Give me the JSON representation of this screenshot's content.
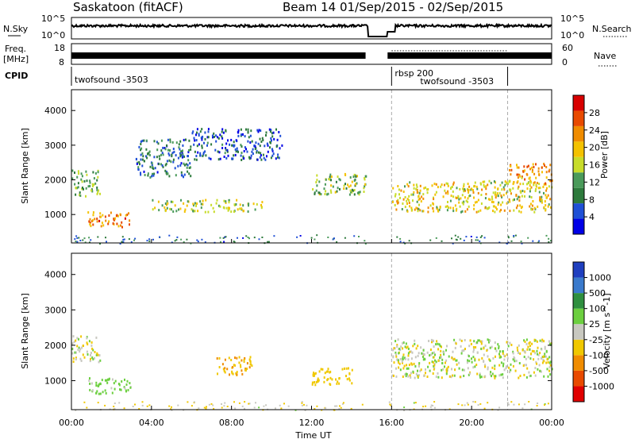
{
  "chart_data": {
    "type": "heatmap",
    "header": {
      "station": "Saskatoon (fitACF)",
      "beam_info": "Beam 14  01/Sep/2015 - 02/Sep/2015"
    },
    "top_panels": {
      "nsky": {
        "label": "N.Sky",
        "left_ticks": [
          "10^5",
          "10^0"
        ],
        "right_ticks": [
          "10^5",
          "10^0"
        ],
        "right_label": "N.Search"
      },
      "freq": {
        "label_line1": "Freq.",
        "label_line2": "[MHz]",
        "left_ticks": [
          "18",
          "8"
        ],
        "right_ticks": [
          "60",
          "0"
        ],
        "right_label": "Nave"
      },
      "cpid": {
        "label": "CPID",
        "programs": [
          {
            "name": "twofsound -3503",
            "start_hour": 0,
            "end_hour": 16
          },
          {
            "name": "rbsp 200",
            "start_hour": 16,
            "end_hour": 16
          },
          {
            "name": "twofsound -3503",
            "start_hour": 16,
            "end_hour": 22
          }
        ]
      }
    },
    "x_axis": {
      "label": "Time UT",
      "range_hours": [
        0,
        24
      ],
      "ticks": [
        "00:00",
        "04:00",
        "08:00",
        "12:00",
        "16:00",
        "20:00",
        "00:00"
      ]
    },
    "y_axis": {
      "label": "Slant Range [km]",
      "range_km": [
        180,
        4600
      ],
      "ticks": [
        1000,
        2000,
        3000,
        4000
      ]
    },
    "power": {
      "colorbar_label": "Power [dB]",
      "range_db": [
        0,
        32
      ],
      "ticks": [
        4,
        8,
        12,
        16,
        20,
        24,
        28
      ],
      "colors": [
        "#0000e6",
        "#1f50d6",
        "#2d7a3c",
        "#4a9a5a",
        "#c8dc2a",
        "#f4c200",
        "#f08c00",
        "#e84a00",
        "#d80000"
      ],
      "echo_regions": [
        {
          "t0": 0.0,
          "t1": 1.4,
          "r0": 1550,
          "r1": 2300,
          "db": 12
        },
        {
          "t0": 0.8,
          "t1": 3.0,
          "r0": 650,
          "r1": 1100,
          "db": 24
        },
        {
          "t0": 3.2,
          "t1": 6.0,
          "r0": 2100,
          "r1": 3200,
          "db": 8
        },
        {
          "t0": 4.0,
          "t1": 9.5,
          "r0": 1100,
          "r1": 1450,
          "db": 16
        },
        {
          "t0": 6.0,
          "t1": 10.5,
          "r0": 2600,
          "r1": 3500,
          "db": 6
        },
        {
          "t0": 12.0,
          "t1": 14.7,
          "r0": 1600,
          "r1": 2200,
          "db": 14
        },
        {
          "t0": 16.0,
          "t1": 24.0,
          "r0": 1100,
          "r1": 2000,
          "db": 18
        },
        {
          "t0": 21.8,
          "t1": 24.0,
          "r0": 1900,
          "r1": 2500,
          "db": 22
        }
      ]
    },
    "velocity": {
      "colorbar_label": "Velocity [m s^-1]",
      "range_ms": [
        -1000,
        1000
      ],
      "ticks": [
        1000,
        500,
        100,
        25,
        -25,
        -100,
        -500,
        -1000
      ],
      "colors": [
        "#1f3fbf",
        "#3a7acc",
        "#2f8f3f",
        "#6ccf3f",
        "#c8c8c0",
        "#f0c800",
        "#f08c00",
        "#e84a00",
        "#e00000"
      ],
      "ground_scatter_color": "#c8c8c0",
      "echo_regions": [
        {
          "t0": 0.0,
          "t1": 1.4,
          "r0": 1550,
          "r1": 2300,
          "v": 0
        },
        {
          "t0": 0.8,
          "t1": 3.0,
          "r0": 650,
          "r1": 1100,
          "v": 100
        },
        {
          "t0": 7.2,
          "t1": 9.0,
          "r0": 1150,
          "r1": 1700,
          "v": -300
        },
        {
          "t0": 12.0,
          "t1": 14.0,
          "r0": 900,
          "r1": 1400,
          "v": -200
        },
        {
          "t0": 16.0,
          "t1": 24.0,
          "r0": 1100,
          "r1": 2200,
          "v": 0
        }
      ]
    }
  }
}
